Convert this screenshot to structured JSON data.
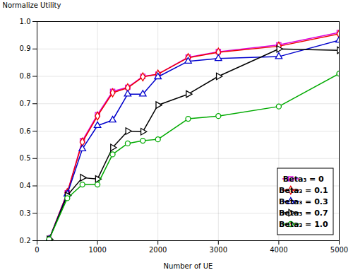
{
  "chart_data": {
    "type": "line",
    "x": [
      200,
      500,
      750,
      1000,
      1250,
      1500,
      1750,
      2000,
      2500,
      3000,
      4000,
      5000
    ],
    "series": [
      {
        "name": "Beta₃ = 0",
        "color": "#dd00dd",
        "marker": "square",
        "values": [
          0.205,
          0.375,
          0.565,
          0.66,
          0.745,
          0.76,
          0.8,
          0.808,
          0.87,
          0.89,
          0.915,
          0.96
        ]
      },
      {
        "name": "Beta₃ = 0.1",
        "color": "#ee0000",
        "marker": "diamond",
        "values": [
          0.205,
          0.375,
          0.56,
          0.655,
          0.74,
          0.758,
          0.798,
          0.808,
          0.868,
          0.888,
          0.91,
          0.955
        ]
      },
      {
        "name": "Beta₃ = 0.3",
        "color": "#0000cc",
        "marker": "triangle-up",
        "values": [
          0.205,
          0.37,
          0.535,
          0.62,
          0.64,
          0.735,
          0.735,
          0.798,
          0.855,
          0.865,
          0.872,
          0.932
        ]
      },
      {
        "name": "Beta₃ = 0.7",
        "color": "#000000",
        "marker": "triangle-right",
        "values": [
          0.205,
          0.365,
          0.43,
          0.425,
          0.54,
          0.6,
          0.598,
          0.695,
          0.735,
          0.8,
          0.9,
          0.895
        ]
      },
      {
        "name": "Beta₃ = 1.0",
        "color": "#00aa00",
        "marker": "circle",
        "values": [
          0.205,
          0.355,
          0.405,
          0.405,
          0.515,
          0.555,
          0.565,
          0.57,
          0.645,
          0.655,
          0.69,
          0.81
        ]
      }
    ],
    "xlabel": "Number of UE",
    "ylabel": "Normalize Utility",
    "xlim": [
      0,
      5000
    ],
    "ylim": [
      0.2,
      1.0
    ],
    "xticks": [
      0,
      1000,
      2000,
      3000,
      4000,
      5000
    ],
    "yticks": [
      0.2,
      0.3,
      0.4,
      0.5,
      0.6,
      0.7,
      0.8,
      0.9,
      {
        "value": 1.0,
        "label": "1.0"
      }
    ],
    "grid": true,
    "legend": "lower right"
  }
}
